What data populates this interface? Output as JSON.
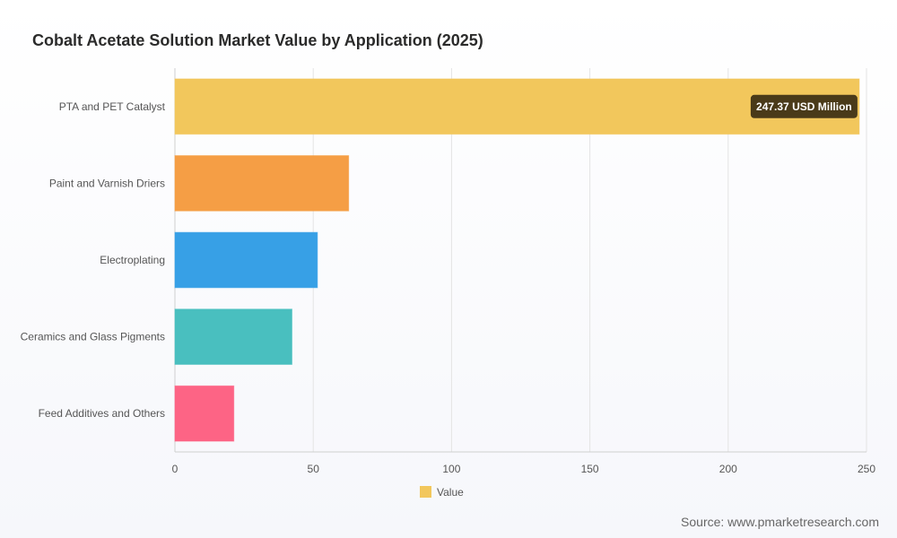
{
  "chart_data": {
    "type": "bar",
    "orientation": "horizontal",
    "title": "Cobalt Acetate Solution Market Value by Application (2025)",
    "categories": [
      "PTA and PET Catalyst",
      "Paint and Varnish Driers",
      "Electroplating",
      "Ceramics and Glass Pigments",
      "Feed Additives and Others"
    ],
    "series": [
      {
        "name": "Value",
        "values": [
          247.37,
          62.8,
          51.5,
          42.3,
          21.3
        ]
      }
    ],
    "colors": [
      "#f2c75c",
      "#f59e45",
      "#37a0e6",
      "#49bfbf",
      "#fd6485"
    ],
    "xlim": [
      0,
      250
    ],
    "xticks": [
      0,
      50,
      100,
      150,
      200,
      250
    ],
    "grid": true,
    "legend_position": "bottom",
    "annotation": {
      "text": "247.37 USD Million",
      "category": "PTA and PET Catalyst"
    }
  },
  "source": "Source: www.pmarketresearch.com"
}
